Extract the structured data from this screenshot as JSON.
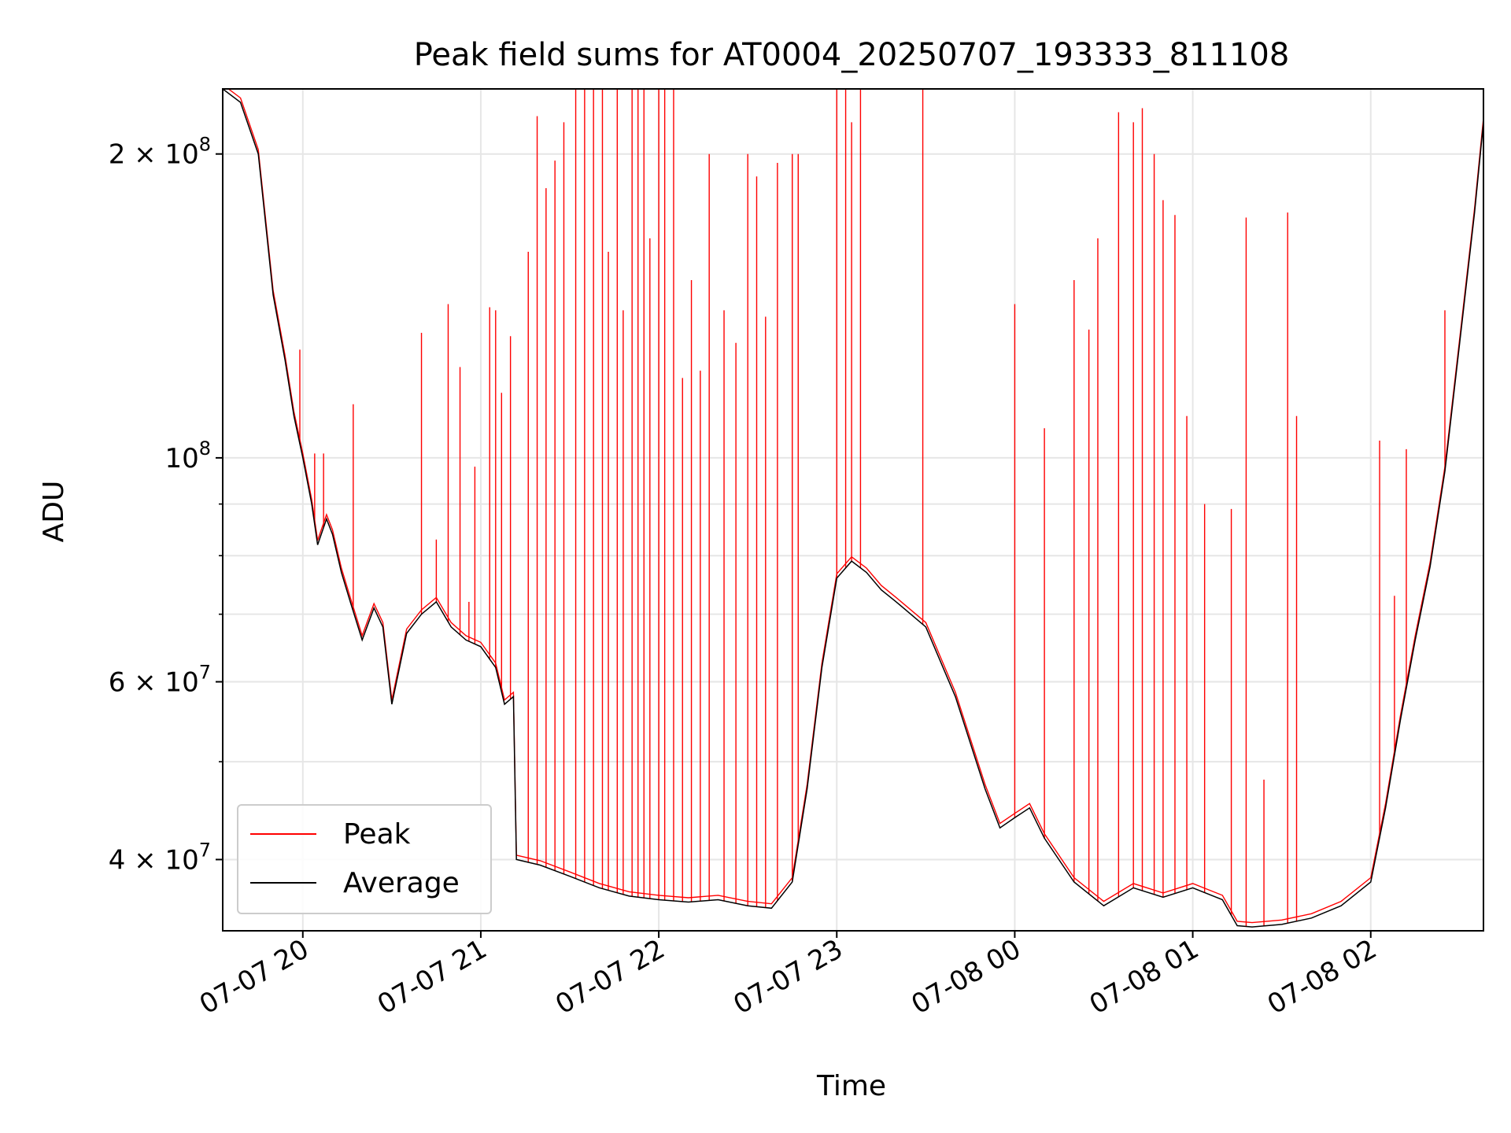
{
  "chart_data": {
    "type": "line",
    "title": "Peak field sums for AT0004_20250707_193333_811108",
    "xlabel": "Time",
    "ylabel": "ADU",
    "y_scale": "log",
    "ylim": [
      34000000,
      232000000
    ],
    "xlim": [
      "2025-07-07 19:33",
      "2025-07-08 02:38"
    ],
    "grid": true,
    "legend_position": "lower-left",
    "x_ticks": [
      "07-07 20",
      "07-07 21",
      "07-07 22",
      "07-07 23",
      "07-08 00",
      "07-08 01",
      "07-08 02"
    ],
    "x_tick_times": [
      "2025-07-07 20:00",
      "2025-07-07 21:00",
      "2025-07-07 22:00",
      "2025-07-07 23:00",
      "2025-07-08 00:00",
      "2025-07-08 01:00",
      "2025-07-08 02:00"
    ],
    "y_ticks": [
      {
        "value": 200000000,
        "mant": "2",
        "exp": "8"
      },
      {
        "value": 100000000,
        "mant": "",
        "exp": "8"
      },
      {
        "value": 60000000,
        "mant": "6",
        "exp": "7"
      },
      {
        "value": 40000000,
        "mant": "4",
        "exp": "7"
      }
    ],
    "series": [
      {
        "name": "Average",
        "color": "#000000",
        "x": [
          "2025-07-07 19:33",
          "2025-07-07 19:39",
          "2025-07-07 19:45",
          "2025-07-07 19:50",
          "2025-07-07 19:54",
          "2025-07-07 19:57",
          "2025-07-07 20:00",
          "2025-07-07 20:03",
          "2025-07-07 20:05",
          "2025-07-07 20:08",
          "2025-07-07 20:10",
          "2025-07-07 20:13",
          "2025-07-07 20:16",
          "2025-07-07 20:20",
          "2025-07-07 20:24",
          "2025-07-07 20:27",
          "2025-07-07 20:30",
          "2025-07-07 20:35",
          "2025-07-07 20:40",
          "2025-07-07 20:45",
          "2025-07-07 20:50",
          "2025-07-07 20:55",
          "2025-07-07 21:00",
          "2025-07-07 21:05",
          "2025-07-07 21:08",
          "2025-07-07 21:11",
          "2025-07-07 21:12",
          "2025-07-07 21:20",
          "2025-07-07 21:30",
          "2025-07-07 21:40",
          "2025-07-07 21:50",
          "2025-07-07 22:00",
          "2025-07-07 22:10",
          "2025-07-07 22:20",
          "2025-07-07 22:30",
          "2025-07-07 22:38",
          "2025-07-07 22:45",
          "2025-07-07 22:50",
          "2025-07-07 22:55",
          "2025-07-07 23:00",
          "2025-07-07 23:05",
          "2025-07-07 23:10",
          "2025-07-07 23:15",
          "2025-07-07 23:20",
          "2025-07-07 23:30",
          "2025-07-07 23:40",
          "2025-07-07 23:50",
          "2025-07-07 23:55",
          "2025-07-08 00:00",
          "2025-07-08 00:05",
          "2025-07-08 00:10",
          "2025-07-08 00:20",
          "2025-07-08 00:30",
          "2025-07-08 00:40",
          "2025-07-08 00:50",
          "2025-07-08 01:00",
          "2025-07-08 01:10",
          "2025-07-08 01:15",
          "2025-07-08 01:20",
          "2025-07-08 01:30",
          "2025-07-08 01:40",
          "2025-07-08 01:50",
          "2025-07-08 02:00",
          "2025-07-08 02:05",
          "2025-07-08 02:10",
          "2025-07-08 02:15",
          "2025-07-08 02:20",
          "2025-07-08 02:25",
          "2025-07-08 02:30",
          "2025-07-08 02:35",
          "2025-07-08 02:38"
        ],
        "y": [
          232000000,
          225000000,
          200000000,
          145000000,
          125000000,
          110000000,
          100000000,
          90000000,
          82000000,
          87000000,
          84000000,
          77000000,
          72000000,
          66000000,
          71000000,
          68000000,
          57000000,
          67000000,
          70000000,
          72000000,
          68000000,
          66000000,
          65000000,
          62000000,
          57000000,
          58000000,
          40000000,
          39500000,
          38500000,
          37500000,
          36800000,
          36500000,
          36300000,
          36500000,
          36000000,
          35800000,
          38000000,
          47000000,
          62000000,
          76000000,
          79000000,
          77000000,
          74000000,
          72000000,
          68000000,
          58000000,
          47000000,
          43000000,
          44000000,
          45000000,
          42000000,
          38000000,
          36000000,
          37500000,
          36700000,
          37500000,
          36500000,
          34400000,
          34300000,
          34500000,
          35000000,
          36000000,
          38000000,
          45000000,
          55000000,
          66000000,
          78000000,
          97000000,
          130000000,
          175000000,
          215000000
        ]
      },
      {
        "name": "Peak",
        "color": "#ff0000",
        "spikes": [
          {
            "x": "2025-07-07 19:59",
            "y": 128000000
          },
          {
            "x": "2025-07-07 20:04",
            "y": 101000000
          },
          {
            "x": "2025-07-07 20:07",
            "y": 101000000
          },
          {
            "x": "2025-07-07 20:17",
            "y": 113000000
          },
          {
            "x": "2025-07-07 20:40",
            "y": 133000000
          },
          {
            "x": "2025-07-07 20:45",
            "y": 83000000
          },
          {
            "x": "2025-07-07 20:49",
            "y": 142000000
          },
          {
            "x": "2025-07-07 20:53",
            "y": 123000000
          },
          {
            "x": "2025-07-07 20:56",
            "y": 72000000
          },
          {
            "x": "2025-07-07 20:58",
            "y": 98000000
          },
          {
            "x": "2025-07-07 21:03",
            "y": 141000000
          },
          {
            "x": "2025-07-07 21:05",
            "y": 140000000
          },
          {
            "x": "2025-07-07 21:07",
            "y": 116000000
          },
          {
            "x": "2025-07-07 21:10",
            "y": 132000000
          },
          {
            "x": "2025-07-07 21:16",
            "y": 160000000
          },
          {
            "x": "2025-07-07 21:19",
            "y": 218000000
          },
          {
            "x": "2025-07-07 21:22",
            "y": 185000000
          },
          {
            "x": "2025-07-07 21:25",
            "y": 197000000
          },
          {
            "x": "2025-07-07 21:28",
            "y": 215000000
          },
          {
            "x": "2025-07-07 21:32",
            "y": 232000000
          },
          {
            "x": "2025-07-07 21:35",
            "y": 232000000
          },
          {
            "x": "2025-07-07 21:38",
            "y": 232000000
          },
          {
            "x": "2025-07-07 21:41",
            "y": 232000000
          },
          {
            "x": "2025-07-07 21:43",
            "y": 160000000
          },
          {
            "x": "2025-07-07 21:46",
            "y": 232000000
          },
          {
            "x": "2025-07-07 21:48",
            "y": 140000000
          },
          {
            "x": "2025-07-07 21:51",
            "y": 232000000
          },
          {
            "x": "2025-07-07 21:53",
            "y": 232000000
          },
          {
            "x": "2025-07-07 21:55",
            "y": 232000000
          },
          {
            "x": "2025-07-07 21:57",
            "y": 165000000
          },
          {
            "x": "2025-07-07 22:00",
            "y": 232000000
          },
          {
            "x": "2025-07-07 22:02",
            "y": 232000000
          },
          {
            "x": "2025-07-07 22:05",
            "y": 232000000
          },
          {
            "x": "2025-07-07 22:08",
            "y": 120000000
          },
          {
            "x": "2025-07-07 22:11",
            "y": 150000000
          },
          {
            "x": "2025-07-07 22:14",
            "y": 122000000
          },
          {
            "x": "2025-07-07 22:17",
            "y": 200000000
          },
          {
            "x": "2025-07-07 22:22",
            "y": 140000000
          },
          {
            "x": "2025-07-07 22:26",
            "y": 130000000
          },
          {
            "x": "2025-07-07 22:30",
            "y": 200000000
          },
          {
            "x": "2025-07-07 22:33",
            "y": 190000000
          },
          {
            "x": "2025-07-07 22:36",
            "y": 138000000
          },
          {
            "x": "2025-07-07 22:40",
            "y": 196000000
          },
          {
            "x": "2025-07-07 22:45",
            "y": 200000000
          },
          {
            "x": "2025-07-07 22:47",
            "y": 200000000
          },
          {
            "x": "2025-07-07 23:00",
            "y": 232000000
          },
          {
            "x": "2025-07-07 23:03",
            "y": 232000000
          },
          {
            "x": "2025-07-07 23:05",
            "y": 215000000
          },
          {
            "x": "2025-07-07 23:08",
            "y": 232000000
          },
          {
            "x": "2025-07-07 23:29",
            "y": 232000000
          },
          {
            "x": "2025-07-08 00:00",
            "y": 142000000
          },
          {
            "x": "2025-07-08 00:10",
            "y": 107000000
          },
          {
            "x": "2025-07-08 00:20",
            "y": 150000000
          },
          {
            "x": "2025-07-08 00:25",
            "y": 134000000
          },
          {
            "x": "2025-07-08 00:28",
            "y": 165000000
          },
          {
            "x": "2025-07-08 00:35",
            "y": 220000000
          },
          {
            "x": "2025-07-08 00:40",
            "y": 215000000
          },
          {
            "x": "2025-07-08 00:43",
            "y": 222000000
          },
          {
            "x": "2025-07-08 00:47",
            "y": 200000000
          },
          {
            "x": "2025-07-08 00:50",
            "y": 180000000
          },
          {
            "x": "2025-07-08 00:54",
            "y": 174000000
          },
          {
            "x": "2025-07-08 00:58",
            "y": 110000000
          },
          {
            "x": "2025-07-08 01:04",
            "y": 90000000
          },
          {
            "x": "2025-07-08 01:13",
            "y": 89000000
          },
          {
            "x": "2025-07-08 01:18",
            "y": 173000000
          },
          {
            "x": "2025-07-08 01:24",
            "y": 48000000
          },
          {
            "x": "2025-07-08 01:32",
            "y": 175000000
          },
          {
            "x": "2025-07-08 01:35",
            "y": 110000000
          },
          {
            "x": "2025-07-08 02:03",
            "y": 104000000
          },
          {
            "x": "2025-07-08 02:08",
            "y": 73000000
          },
          {
            "x": "2025-07-08 02:12",
            "y": 102000000
          },
          {
            "x": "2025-07-08 02:25",
            "y": 140000000
          }
        ]
      }
    ]
  }
}
